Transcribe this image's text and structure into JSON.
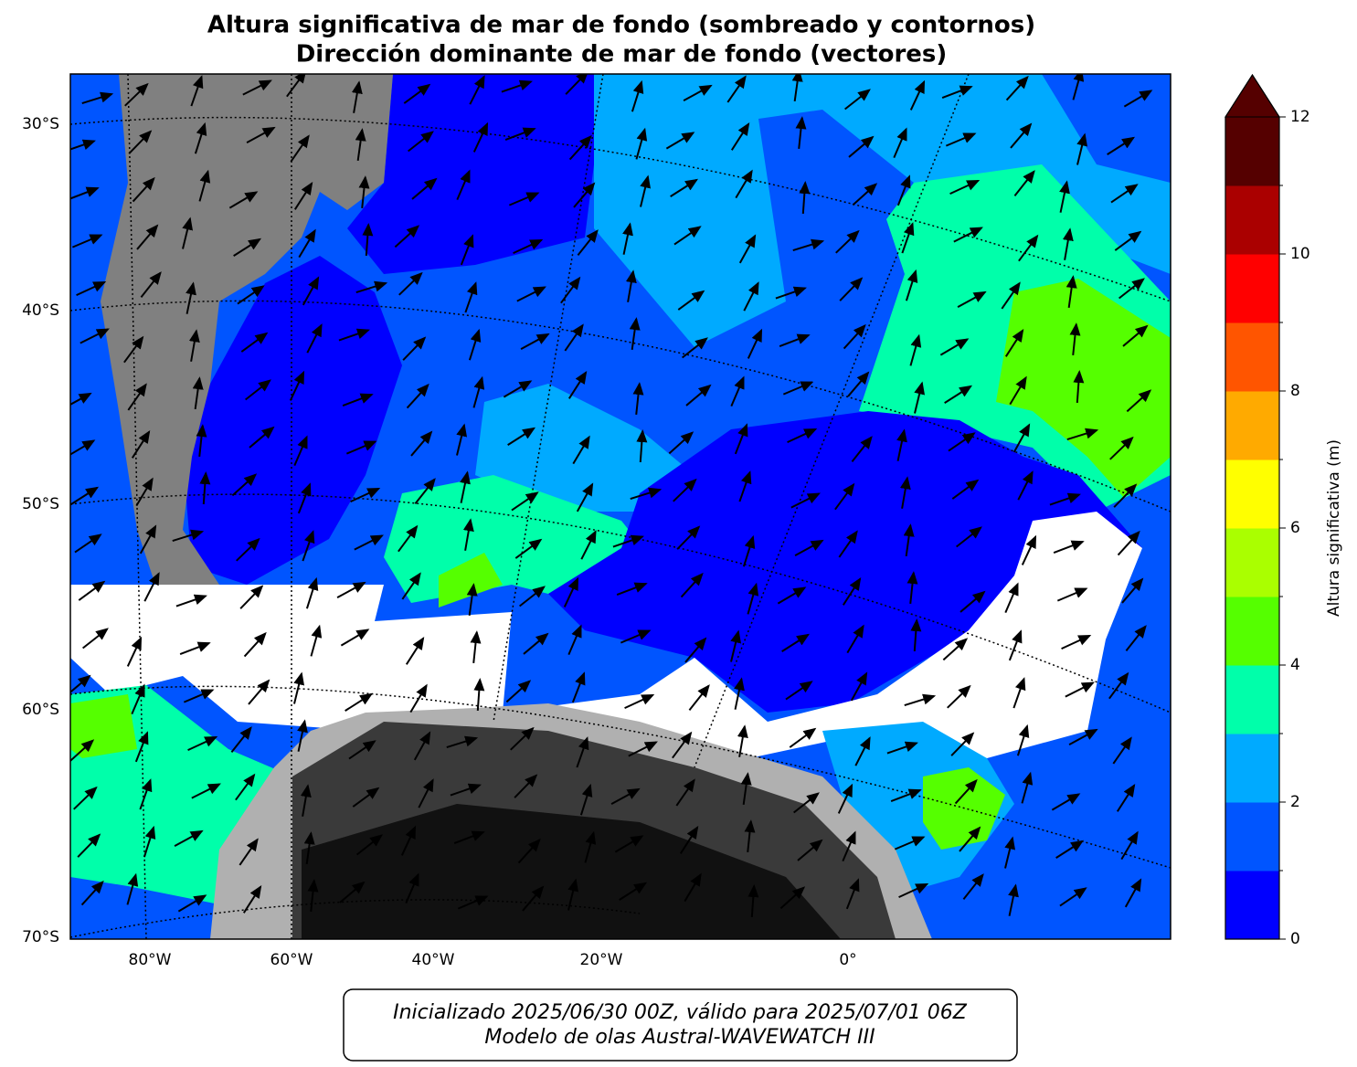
{
  "title": [
    "Altura significativa de mar de fondo (sombreado y contornos)",
    "Dirección dominante de mar de fondo (vectores)"
  ],
  "map": {
    "lat_labels": [
      "30°S",
      "40°S",
      "50°S",
      "60°S",
      "70°S"
    ],
    "lon_labels": [
      "80°W",
      "60°W",
      "40°W",
      "20°W",
      "0°"
    ]
  },
  "colorbar": {
    "label": "Altura significativa (m)",
    "levels": [
      0,
      1,
      2,
      3,
      4,
      5,
      6,
      7,
      8,
      9,
      10,
      11,
      12
    ],
    "ticks": [
      0,
      2,
      4,
      6,
      8,
      10,
      12
    ],
    "colors": [
      "#0000ff",
      "#0055ff",
      "#00aaff",
      "#00ffaa",
      "#55ff00",
      "#aaff00",
      "#ffff00",
      "#ffaa00",
      "#ff5500",
      "#ff0000",
      "#aa0000",
      "#550000"
    ],
    "extend": "max",
    "extend_color": "#550000"
  },
  "footer": [
    "Inicializado 2025/06/30 00Z, válido para 2025/07/01 06Z",
    "Modelo de olas Austral-WAVEWATCH III"
  ]
}
